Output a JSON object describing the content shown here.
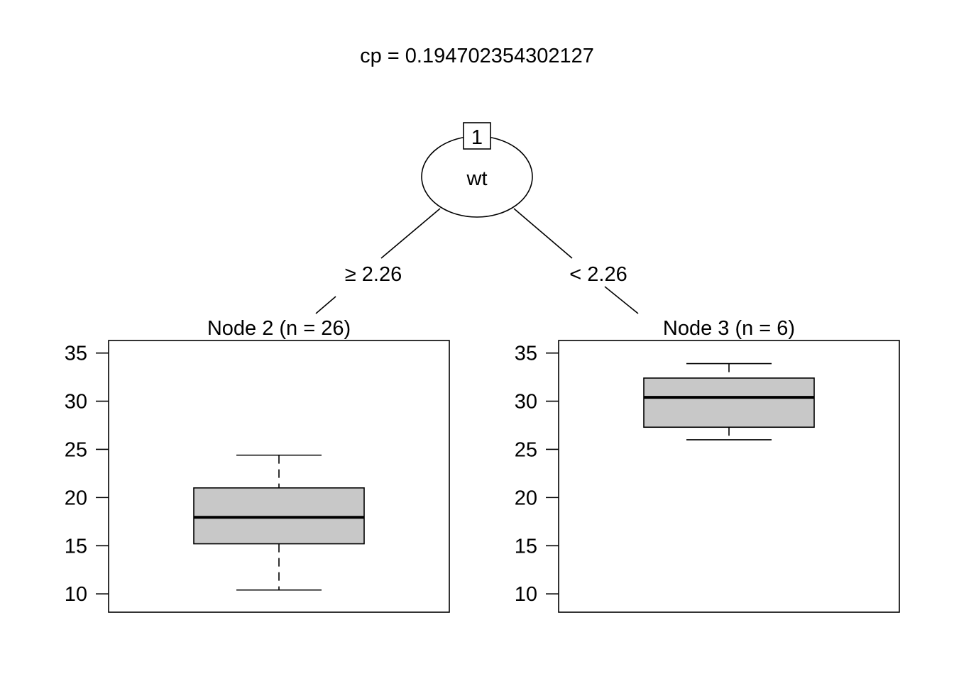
{
  "chart_data": {
    "type": "decision-tree",
    "title": "cp = 0.194702354302127",
    "root": {
      "id": "1",
      "variable": "wt"
    },
    "edges": [
      {
        "label": "≥ 2.26"
      },
      {
        "label": "< 2.26"
      }
    ],
    "y_ticks": [
      10,
      15,
      20,
      25,
      30,
      35
    ],
    "ylim": [
      8.1,
      36.3
    ],
    "box_fill": "#c8c8c8",
    "leaves": [
      {
        "id": "2",
        "title": "Node 2 (n = 26)",
        "n": 26,
        "box": {
          "whisker_low": 10.4,
          "q1": 15.2,
          "median": 17.95,
          "q3": 21.0,
          "whisker_high": 24.4
        }
      },
      {
        "id": "3",
        "title": "Node 3 (n = 6)",
        "n": 6,
        "box": {
          "whisker_low": 26.0,
          "q1": 27.3,
          "median": 30.4,
          "q3": 32.4,
          "whisker_high": 33.9
        }
      }
    ]
  }
}
